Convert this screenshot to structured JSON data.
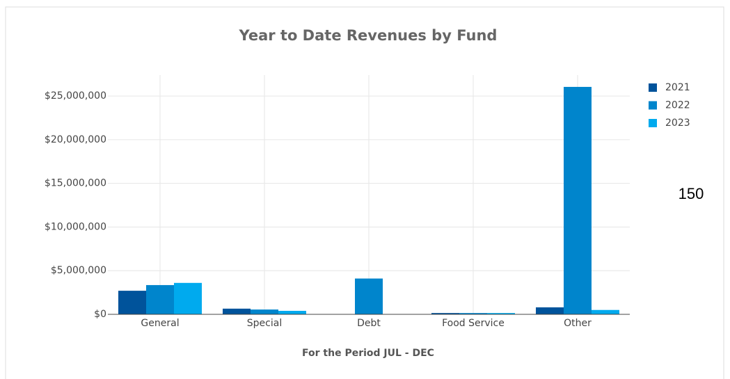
{
  "chart_data": {
    "type": "bar",
    "title": "Year to Date Revenues by Fund",
    "x_label": "For the Period JUL - DEC",
    "annotation": "150",
    "categories": [
      "General",
      "Special",
      "Debt",
      "Food Service",
      "Other"
    ],
    "series": [
      {
        "name": "2021",
        "color": "#00539b",
        "values": [
          2700000,
          650000,
          0,
          150000,
          800000
        ]
      },
      {
        "name": "2022",
        "color": "#0085cc",
        "values": [
          3350000,
          550000,
          4100000,
          150000,
          26050000
        ]
      },
      {
        "name": "2023",
        "color": "#00aaee",
        "values": [
          3600000,
          400000,
          0,
          150000,
          500000
        ]
      }
    ],
    "ylim": [
      0,
      27400000
    ],
    "yticks": [
      {
        "value": 0,
        "label": "$0"
      },
      {
        "value": 5000000,
        "label": "$5,000,000"
      },
      {
        "value": 10000000,
        "label": "$10,000,000"
      },
      {
        "value": 15000000,
        "label": "$15,000,000"
      },
      {
        "value": 20000000,
        "label": "$20,000,000"
      },
      {
        "value": 25000000,
        "label": "$25,000,000"
      }
    ],
    "grid": true,
    "legend": "right"
  }
}
